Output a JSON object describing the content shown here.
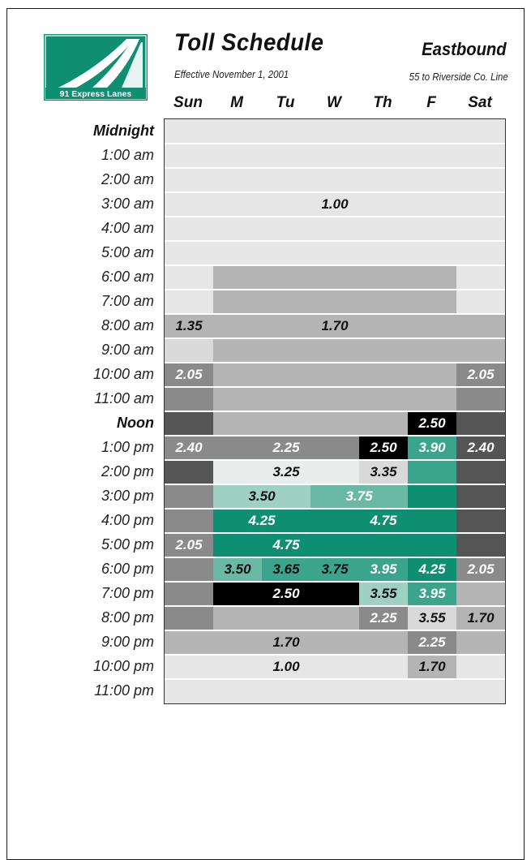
{
  "logo": {
    "text": "91 Express Lanes",
    "icon": "highway-lanes-icon",
    "color": "#0f8f72"
  },
  "header": {
    "title": "Toll Schedule",
    "direction": "Eastbound",
    "effective": "Effective November 1, 2001",
    "segment": "55 to Riverside Co. Line"
  },
  "days": [
    "Sun",
    "M",
    "Tu",
    "W",
    "Th",
    "F",
    "Sat"
  ],
  "times": [
    "Midnight",
    "1:00 am",
    "2:00 am",
    "3:00 am",
    "4:00 am",
    "5:00 am",
    "6:00 am",
    "7:00 am",
    "8:00 am",
    "9:00 am",
    "10:00 am",
    "11:00 am",
    "Noon",
    "1:00 pm",
    "2:00 pm",
    "3:00 pm",
    "4:00 pm",
    "5:00 pm",
    "6:00 pm",
    "7:00 pm",
    "8:00 pm",
    "9:00 pm",
    "10:00 pm",
    "11:00 pm"
  ],
  "bold_times": [
    "Midnight",
    "Noon"
  ],
  "palette": {
    "base": "#e6e6e6",
    "mid": "#b4b4b4",
    "dark": "#8a8a8a",
    "darker": "#555555",
    "black": "#000000",
    "pale": "#d9d9d9",
    "paleblue": "#e9eeec",
    "mint": "#9fd1c2",
    "teal_light": "#69b9a4",
    "teal": "#3aa48d",
    "green": "#0f8f72"
  },
  "blocks": [
    {
      "day": 1,
      "span": 5,
      "hour": 6,
      "hours": 7,
      "color": "mid"
    },
    {
      "day": 0,
      "span": 1,
      "hour": 8,
      "hours": 1,
      "color": "mid"
    },
    {
      "day": 0,
      "span": 1,
      "hour": 9,
      "hours": 1,
      "color": "pale"
    },
    {
      "day": 0,
      "span": 1,
      "hour": 10,
      "hours": 1,
      "color": "dark"
    },
    {
      "day": 0,
      "span": 1,
      "hour": 11,
      "hours": 1,
      "color": "dark"
    },
    {
      "day": 6,
      "span": 1,
      "hour": 8,
      "hours": 2,
      "color": "mid"
    },
    {
      "day": 6,
      "span": 1,
      "hour": 10,
      "hours": 2,
      "color": "dark"
    },
    {
      "day": 0,
      "span": 1,
      "hour": 12,
      "hours": 1,
      "color": "darker"
    },
    {
      "day": 6,
      "span": 1,
      "hour": 12,
      "hours": 1,
      "color": "darker"
    },
    {
      "day": 5,
      "span": 1,
      "hour": 12,
      "hours": 1,
      "color": "black"
    },
    {
      "day": 0,
      "span": 1,
      "hour": 13,
      "hours": 1,
      "color": "dark"
    },
    {
      "day": 1,
      "span": 3,
      "hour": 13,
      "hours": 1,
      "color": "dark"
    },
    {
      "day": 4,
      "span": 1,
      "hour": 13,
      "hours": 1,
      "color": "black"
    },
    {
      "day": 5,
      "span": 1,
      "hour": 13,
      "hours": 1,
      "color": "teal"
    },
    {
      "day": 6,
      "span": 1,
      "hour": 13,
      "hours": 1,
      "color": "darker"
    },
    {
      "day": 0,
      "span": 1,
      "hour": 14,
      "hours": 1,
      "color": "darker"
    },
    {
      "day": 1,
      "span": 3,
      "hour": 14,
      "hours": 1,
      "color": "paleblue"
    },
    {
      "day": 4,
      "span": 1,
      "hour": 14,
      "hours": 1,
      "color": "pale"
    },
    {
      "day": 5,
      "span": 1,
      "hour": 14,
      "hours": 1,
      "color": "teal"
    },
    {
      "day": 6,
      "span": 1,
      "hour": 14,
      "hours": 1,
      "color": "darker"
    },
    {
      "day": 0,
      "span": 1,
      "hour": 15,
      "hours": 1,
      "color": "dark"
    },
    {
      "day": 1,
      "span": 2,
      "hour": 15,
      "hours": 1,
      "color": "mint"
    },
    {
      "day": 3,
      "span": 2,
      "hour": 15,
      "hours": 1,
      "color": "teal_light"
    },
    {
      "day": 5,
      "span": 1,
      "hour": 15,
      "hours": 1,
      "color": "green"
    },
    {
      "day": 6,
      "span": 1,
      "hour": 15,
      "hours": 1,
      "color": "darker"
    },
    {
      "day": 0,
      "span": 1,
      "hour": 16,
      "hours": 1,
      "color": "dark"
    },
    {
      "day": 1,
      "span": 5,
      "hour": 16,
      "hours": 1,
      "color": "green"
    },
    {
      "day": 6,
      "span": 1,
      "hour": 16,
      "hours": 1,
      "color": "darker"
    },
    {
      "day": 0,
      "span": 1,
      "hour": 17,
      "hours": 1,
      "color": "dark"
    },
    {
      "day": 1,
      "span": 5,
      "hour": 17,
      "hours": 1,
      "color": "green"
    },
    {
      "day": 6,
      "span": 1,
      "hour": 17,
      "hours": 1,
      "color": "darker"
    },
    {
      "day": 0,
      "span": 1,
      "hour": 18,
      "hours": 1,
      "color": "dark"
    },
    {
      "day": 1,
      "span": 1,
      "hour": 18,
      "hours": 1,
      "color": "teal_light"
    },
    {
      "day": 2,
      "span": 2,
      "hour": 18,
      "hours": 1,
      "color": "teal"
    },
    {
      "day": 4,
      "span": 1,
      "hour": 18,
      "hours": 1,
      "color": "teal"
    },
    {
      "day": 5,
      "span": 1,
      "hour": 18,
      "hours": 1,
      "color": "green"
    },
    {
      "day": 6,
      "span": 1,
      "hour": 18,
      "hours": 1,
      "color": "dark"
    },
    {
      "day": 0,
      "span": 1,
      "hour": 19,
      "hours": 1,
      "color": "dark"
    },
    {
      "day": 1,
      "span": 3,
      "hour": 19,
      "hours": 1,
      "color": "black"
    },
    {
      "day": 4,
      "span": 1,
      "hour": 19,
      "hours": 1,
      "color": "mint"
    },
    {
      "day": 5,
      "span": 1,
      "hour": 19,
      "hours": 1,
      "color": "teal"
    },
    {
      "day": 6,
      "span": 1,
      "hour": 19,
      "hours": 1,
      "color": "mid"
    },
    {
      "day": 0,
      "span": 1,
      "hour": 20,
      "hours": 1,
      "color": "dark"
    },
    {
      "day": 1,
      "span": 3,
      "hour": 20,
      "hours": 1,
      "color": "mid"
    },
    {
      "day": 4,
      "span": 1,
      "hour": 20,
      "hours": 1,
      "color": "dark"
    },
    {
      "day": 5,
      "span": 1,
      "hour": 20,
      "hours": 1,
      "color": "pale"
    },
    {
      "day": 6,
      "span": 1,
      "hour": 20,
      "hours": 1,
      "color": "mid"
    },
    {
      "day": 0,
      "span": 7,
      "hour": 21,
      "hours": 1,
      "color": "mid"
    },
    {
      "day": 5,
      "span": 1,
      "hour": 21,
      "hours": 1,
      "color": "dark"
    },
    {
      "day": 5,
      "span": 1,
      "hour": 22,
      "hours": 1,
      "color": "mid"
    }
  ],
  "labels": [
    {
      "text": "1.00",
      "day": 3,
      "span": 1,
      "hour": 3,
      "tone": "dark"
    },
    {
      "text": "1.35",
      "day": 0,
      "span": 1,
      "hour": 8,
      "tone": "dark"
    },
    {
      "text": "1.70",
      "day": 3,
      "span": 1,
      "hour": 8,
      "tone": "dark"
    },
    {
      "text": "2.05",
      "day": 0,
      "span": 1,
      "hour": 10,
      "tone": "light"
    },
    {
      "text": "2.05",
      "day": 6,
      "span": 1,
      "hour": 10,
      "tone": "light"
    },
    {
      "text": "2.50",
      "day": 5,
      "span": 1,
      "hour": 12,
      "tone": "light"
    },
    {
      "text": "2.40",
      "day": 0,
      "span": 1,
      "hour": 13,
      "tone": "light"
    },
    {
      "text": "2.25",
      "day": 2,
      "span": 1,
      "hour": 13,
      "tone": "light"
    },
    {
      "text": "2.50",
      "day": 4,
      "span": 1,
      "hour": 13,
      "tone": "light"
    },
    {
      "text": "3.90",
      "day": 5,
      "span": 1,
      "hour": 13,
      "tone": "light"
    },
    {
      "text": "2.40",
      "day": 6,
      "span": 1,
      "hour": 13,
      "tone": "light"
    },
    {
      "text": "3.25",
      "day": 2,
      "span": 1,
      "hour": 14,
      "tone": "dark"
    },
    {
      "text": "3.35",
      "day": 4,
      "span": 1,
      "hour": 14,
      "tone": "dark"
    },
    {
      "text": "3.50",
      "day": 1,
      "span": 2,
      "hour": 15,
      "tone": "dark"
    },
    {
      "text": "3.75",
      "day": 3,
      "span": 2,
      "hour": 15,
      "tone": "light"
    },
    {
      "text": "4.25",
      "day": 1,
      "span": 2,
      "hour": 16,
      "tone": "light"
    },
    {
      "text": "4.75",
      "day": 3,
      "span": 3,
      "hour": 16,
      "tone": "light"
    },
    {
      "text": "2.05",
      "day": 0,
      "span": 1,
      "hour": 17,
      "tone": "light"
    },
    {
      "text": "4.75",
      "day": 2,
      "span": 1,
      "hour": 17,
      "tone": "light"
    },
    {
      "text": "3.50",
      "day": 1,
      "span": 1,
      "hour": 18,
      "tone": "dark"
    },
    {
      "text": "3.65",
      "day": 2,
      "span": 1,
      "hour": 18,
      "tone": "dark"
    },
    {
      "text": "3.75",
      "day": 3,
      "span": 1,
      "hour": 18,
      "tone": "dark"
    },
    {
      "text": "3.95",
      "day": 4,
      "span": 1,
      "hour": 18,
      "tone": "light"
    },
    {
      "text": "4.25",
      "day": 5,
      "span": 1,
      "hour": 18,
      "tone": "light"
    },
    {
      "text": "2.05",
      "day": 6,
      "span": 1,
      "hour": 18,
      "tone": "light"
    },
    {
      "text": "2.50",
      "day": 2,
      "span": 1,
      "hour": 19,
      "tone": "light"
    },
    {
      "text": "3.55",
      "day": 4,
      "span": 1,
      "hour": 19,
      "tone": "dark"
    },
    {
      "text": "3.95",
      "day": 5,
      "span": 1,
      "hour": 19,
      "tone": "light"
    },
    {
      "text": "2.25",
      "day": 4,
      "span": 1,
      "hour": 20,
      "tone": "light"
    },
    {
      "text": "3.55",
      "day": 5,
      "span": 1,
      "hour": 20,
      "tone": "dark"
    },
    {
      "text": "1.70",
      "day": 6,
      "span": 1,
      "hour": 20,
      "tone": "dark"
    },
    {
      "text": "1.70",
      "day": 2,
      "span": 1,
      "hour": 21,
      "tone": "dark"
    },
    {
      "text": "2.25",
      "day": 5,
      "span": 1,
      "hour": 21,
      "tone": "light"
    },
    {
      "text": "1.00",
      "day": 2,
      "span": 1,
      "hour": 22,
      "tone": "dark"
    },
    {
      "text": "1.70",
      "day": 5,
      "span": 1,
      "hour": 22,
      "tone": "dark"
    }
  ]
}
